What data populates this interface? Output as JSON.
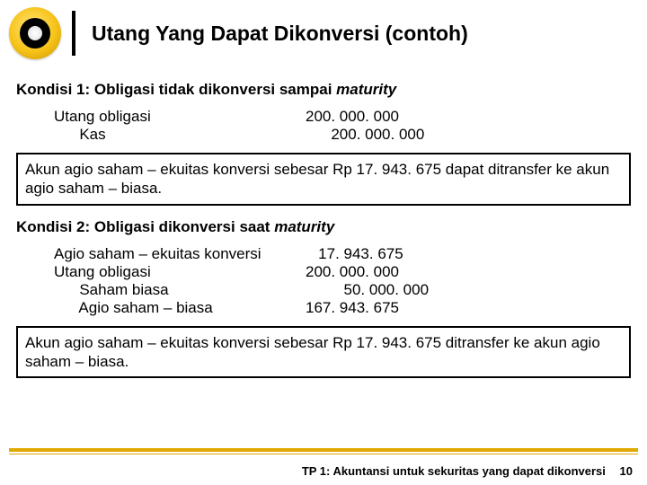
{
  "title": "Utang Yang Dapat Dikonversi (contoh)",
  "kondisi1": {
    "heading_prefix": "Kondisi 1: Obligasi tidak dikonversi sampai ",
    "heading_italic": "maturity",
    "journal": [
      {
        "account": "Utang obligasi",
        "indent_acc": 0,
        "amount": "200. 000. 000",
        "indent_amt": 0
      },
      {
        "account": "Kas",
        "indent_acc": 1,
        "amount": "200. 000. 000",
        "indent_amt": 1
      }
    ],
    "note": "Akun agio saham – ekuitas konversi sebesar Rp 17. 943. 675 dapat ditransfer ke akun agio saham – biasa."
  },
  "kondisi2": {
    "heading_prefix": "Kondisi 2: Obligasi dikonversi saat ",
    "heading_italic": "maturity",
    "journal": [
      {
        "account": "Agio saham – ekuitas konversi",
        "indent_acc": 0,
        "amount": "17. 943. 675",
        "indent_amt": 0.5
      },
      {
        "account": "Utang obligasi",
        "indent_acc": 0,
        "amount": "200. 000. 000",
        "indent_amt": 0
      },
      {
        "account": "Saham biasa",
        "indent_acc": 1,
        "amount": "50. 000. 000",
        "indent_amt": 1.5
      },
      {
        "account": "Agio saham – biasa",
        "indent_acc": 1,
        "amount": "167. 943. 675",
        "indent_amt": 0
      }
    ],
    "note": "Akun agio saham – ekuitas konversi sebesar Rp 17. 943. 675 ditransfer ke akun agio saham – biasa."
  },
  "footer": {
    "text": "TP 1: Akuntansi untuk sekuritas yang dapat dikonversi",
    "page": "10"
  },
  "colors": {
    "accent": "#e0a800"
  }
}
